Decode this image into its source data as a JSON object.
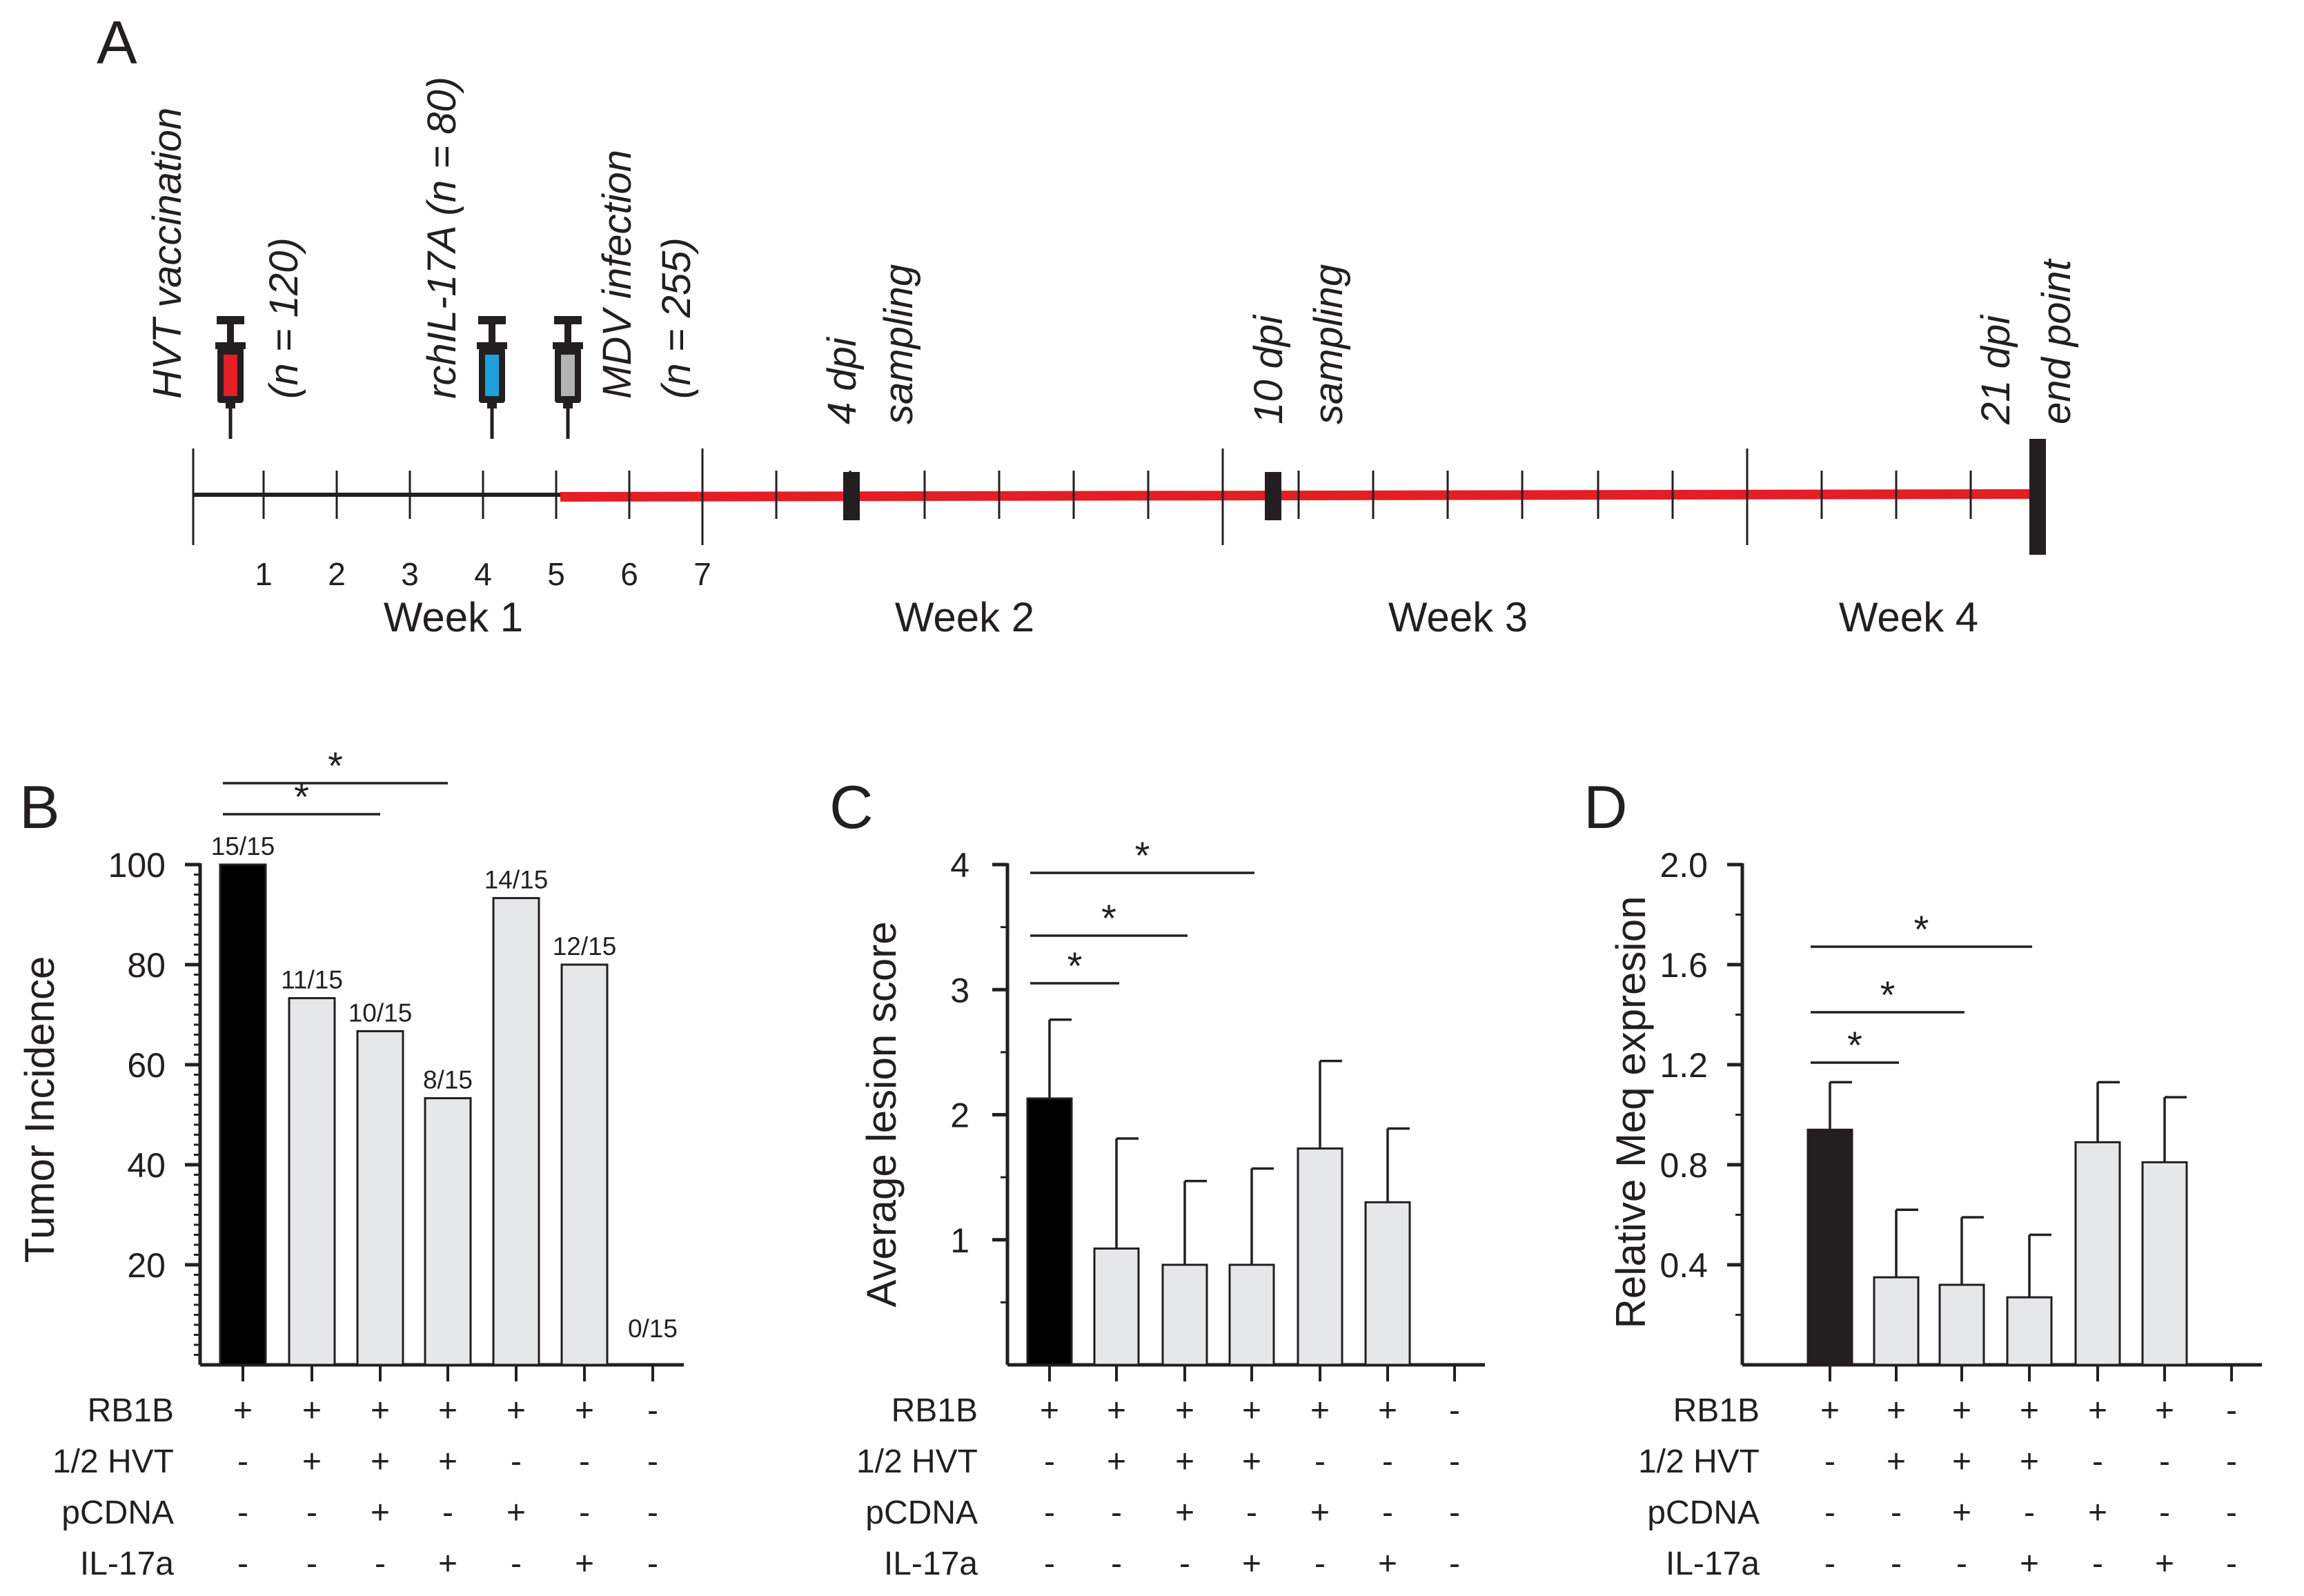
{
  "figure": {
    "panel_letters": [
      "A",
      "B",
      "C",
      "D"
    ]
  },
  "timeline": {
    "events": [
      {
        "label": "HVT vaccination",
        "sublabel": "(n = 120)",
        "day": 0.5,
        "syringe_color": "#e31e24"
      },
      {
        "label": "rchIL-17A (n = 80)",
        "sublabel": "",
        "day": 4,
        "syringe_color": "#1ea0dc"
      },
      {
        "label": "MDV infection",
        "sublabel": "(n = 255)",
        "day": 5,
        "syringe_color": "#b3b3b3"
      }
    ],
    "samplings": [
      {
        "label": "4 dpi",
        "sublabel": "sampling"
      },
      {
        "label": "10 dpi",
        "sublabel": "sampling"
      },
      {
        "label": "21 dpi",
        "sublabel": "end point"
      }
    ],
    "day_numbers": [
      "1",
      "2",
      "3",
      "4",
      "5",
      "6",
      "7"
    ],
    "weeks": [
      "Week 1",
      "Week 2",
      "Week 3",
      "Week 4"
    ],
    "colors": {
      "pre_infection": "#231f20",
      "post_infection": "#e31e24"
    }
  },
  "conditions": {
    "row_labels": [
      "RB1B",
      "1/2 HVT",
      "pCDNA",
      "IL-17a"
    ],
    "matrix": [
      [
        "+",
        "+",
        "+",
        "+",
        "+",
        "+",
        "-"
      ],
      [
        "-",
        "+",
        "+",
        "+",
        "-",
        "-",
        "-"
      ],
      [
        "-",
        "-",
        "+",
        "-",
        "+",
        "-",
        "-"
      ],
      [
        "-",
        "-",
        "-",
        "+",
        "-",
        "+",
        "-"
      ]
    ]
  },
  "chart_data": [
    {
      "panel": "B",
      "type": "bar",
      "ylabel": "Tumor Incidence",
      "ylim": [
        0,
        100
      ],
      "yticks": [
        20,
        40,
        60,
        80,
        100
      ],
      "ytick_labels": [
        "20",
        "40",
        "60",
        "80",
        "100"
      ],
      "values": [
        100,
        73.3,
        66.7,
        53.3,
        93.3,
        80,
        0
      ],
      "data_labels": [
        "15/15",
        "11/15",
        "10/15",
        "8/15",
        "14/15",
        "12/15",
        "0/15"
      ],
      "bar_colors": [
        "#000000",
        "#e6e7e8",
        "#e6e7e8",
        "#e6e7e8",
        "#e6e7e8",
        "#e6e7e8",
        "#ffffff"
      ],
      "significance": [
        {
          "from": 0,
          "to": 2,
          "label": "*"
        },
        {
          "from": 0,
          "to": 3,
          "label": "*"
        }
      ]
    },
    {
      "panel": "C",
      "type": "bar",
      "ylabel": "Average lesion score",
      "ylim": [
        0,
        4
      ],
      "yticks": [
        1,
        2,
        3,
        4
      ],
      "ytick_labels": [
        "1",
        "2",
        "3",
        "4"
      ],
      "values": [
        2.13,
        0.93,
        0.8,
        0.8,
        1.73,
        1.3,
        0
      ],
      "errors": [
        0.63,
        0.88,
        0.67,
        0.77,
        0.7,
        0.59,
        0
      ],
      "bar_colors": [
        "#000000",
        "#e6e7e8",
        "#e6e7e8",
        "#e6e7e8",
        "#e6e7e8",
        "#e6e7e8",
        "#ffffff"
      ],
      "significance": [
        {
          "from": 0,
          "to": 1,
          "label": "*"
        },
        {
          "from": 0,
          "to": 2,
          "label": "*"
        },
        {
          "from": 0,
          "to": 3,
          "label": "*"
        }
      ]
    },
    {
      "panel": "D",
      "type": "bar",
      "ylabel": "Relative Meq expresion",
      "ylim": [
        0,
        2.0
      ],
      "yticks": [
        0.4,
        0.8,
        1.2,
        1.6,
        2.0
      ],
      "ytick_labels": [
        "0.4",
        "0.8",
        "1.2",
        "1.6",
        "2.0"
      ],
      "values": [
        0.94,
        0.35,
        0.32,
        0.27,
        0.89,
        0.81,
        0
      ],
      "errors": [
        0.19,
        0.27,
        0.27,
        0.25,
        0.24,
        0.26,
        0
      ],
      "bar_colors": [
        "#231f20",
        "#e6e7e8",
        "#e6e7e8",
        "#e6e7e8",
        "#e6e7e8",
        "#e6e7e8",
        "#ffffff"
      ],
      "significance": [
        {
          "from": 0,
          "to": 1,
          "label": "*"
        },
        {
          "from": 0,
          "to": 2,
          "label": "*"
        },
        {
          "from": 0,
          "to": 3,
          "label": "*"
        }
      ]
    }
  ]
}
